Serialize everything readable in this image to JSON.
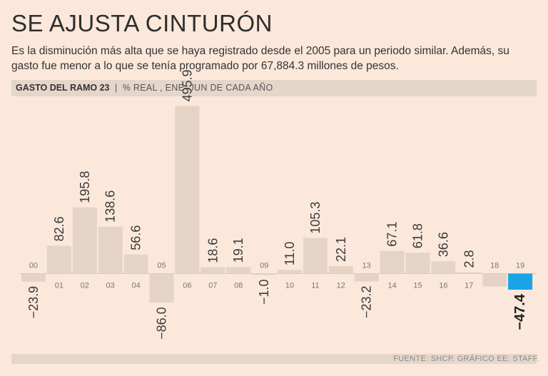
{
  "title": "SE AJUSTA CINTURÓN",
  "subtitle": "Es la disminución más alta que se haya registrado desde el 2005 para un periodo similar. Además, su gasto fue menor a lo que se tenía programado por 67,884.3 millones de pesos.",
  "header": {
    "label_bold": "GASTO DEL RAMO 23",
    "separator": "|",
    "label_light": "% REAL , ENE–JUN DE CADA AÑO"
  },
  "source": "FUENTE: SHCP. GRÁFICO EE: STAFF.",
  "colors": {
    "bar": "#e5d3c6",
    "highlight": "#1aa3e8",
    "background": "#fbe8da"
  },
  "chart_data": {
    "type": "bar",
    "title": "GASTO DEL RAMO 23",
    "ylabel": "% REAL , ENE–JUN DE CADA AÑO",
    "categories": [
      "00",
      "01",
      "02",
      "03",
      "04",
      "05",
      "06",
      "07",
      "08",
      "09",
      "10",
      "11",
      "12",
      "13",
      "14",
      "15",
      "16",
      "17",
      "18",
      "19"
    ],
    "values": [
      -23.9,
      82.6,
      195.8,
      138.6,
      56.6,
      -86.0,
      495.9,
      18.6,
      19.1,
      -1.0,
      11.0,
      105.3,
      22.1,
      -23.2,
      67.1,
      61.8,
      36.6,
      2.8,
      null,
      -47.4
    ],
    "value_labels": [
      "-23.9",
      "82.6",
      "195.8",
      "138.6",
      "56.6",
      "-86.0",
      "495.9",
      "18.6",
      "19.1",
      "-1.0",
      "11.0",
      "105.3",
      "22.1",
      "-23.2",
      "67.1",
      "61.8",
      "36.6",
      "2.8",
      "",
      "-47.4"
    ],
    "highlight_category": "19"
  }
}
